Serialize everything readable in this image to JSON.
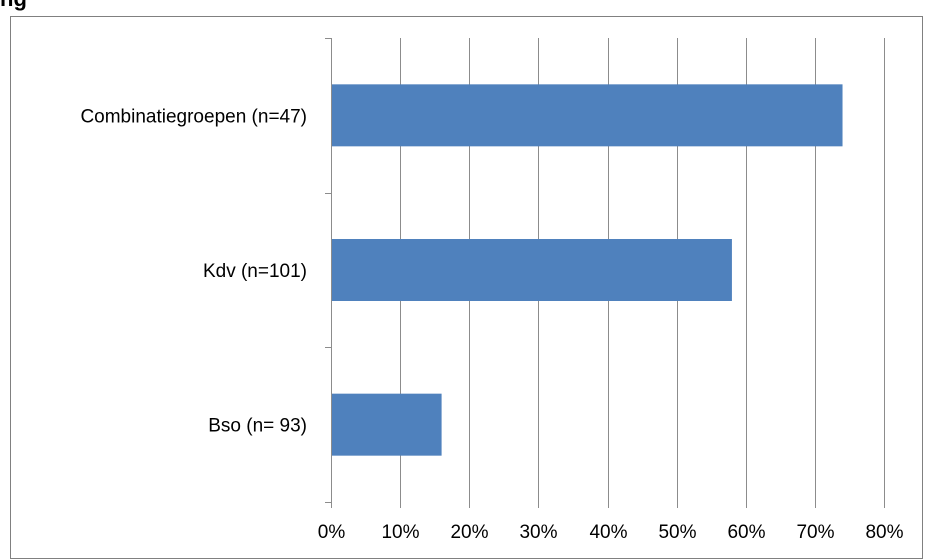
{
  "header_fragment": "ng",
  "chart_data": {
    "type": "bar",
    "orientation": "horizontal",
    "categories": [
      "Combinatiegroepen (n=47)",
      "Kdv (n=101)",
      "Bso (n= 93)"
    ],
    "values": [
      74,
      58,
      16
    ],
    "value_unit": "%",
    "xlim": [
      0,
      80
    ],
    "xticks": [
      "0%",
      "10%",
      "20%",
      "30%",
      "40%",
      "50%",
      "60%",
      "70%",
      "80%"
    ],
    "grid": "vertical",
    "legend": "none",
    "bar_color": "#4f81bd"
  }
}
